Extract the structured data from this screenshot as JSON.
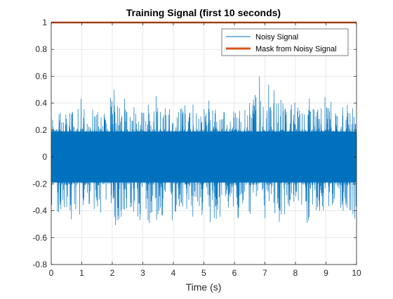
{
  "chart_data": {
    "type": "line",
    "title": "Training Signal (first 10 seconds)",
    "xlabel": "Time (s)",
    "ylabel": "",
    "xlim": [
      0,
      10
    ],
    "ylim": [
      -0.8,
      1
    ],
    "xticks": [
      0,
      1,
      2,
      3,
      4,
      5,
      6,
      7,
      8,
      9,
      10
    ],
    "yticks": [
      -0.8,
      -0.6,
      -0.4,
      -0.2,
      0,
      0.2,
      0.4,
      0.6,
      0.8,
      1
    ],
    "grid": true,
    "legend_position": "top-right",
    "series": [
      {
        "name": "Noisy Signal",
        "color": "#0072BD",
        "style": "dense noise waveform",
        "x": [
          0,
          0.25,
          0.5,
          0.75,
          1,
          1.25,
          1.5,
          1.75,
          2,
          2.25,
          2.5,
          2.75,
          3,
          3.25,
          3.5,
          3.75,
          4,
          4.25,
          4.5,
          4.75,
          5,
          5.25,
          5.5,
          5.75,
          6,
          6.25,
          6.5,
          6.75,
          7,
          7.25,
          7.5,
          7.75,
          8,
          8.25,
          8.5,
          8.75,
          9,
          9.25,
          9.5,
          9.75,
          10
        ],
        "upper": [
          0.38,
          0.45,
          0.42,
          0.45,
          0.45,
          0.4,
          0.44,
          0.46,
          0.52,
          0.48,
          0.44,
          0.41,
          0.48,
          0.5,
          0.47,
          0.5,
          0.44,
          0.5,
          0.48,
          0.42,
          0.46,
          0.49,
          0.45,
          0.45,
          0.44,
          0.45,
          0.43,
          0.65,
          0.55,
          0.55,
          0.47,
          0.45,
          0.46,
          0.46,
          0.45,
          0.45,
          0.5,
          0.42,
          0.44,
          0.5,
          0.5
        ],
        "lower": [
          -0.48,
          -0.45,
          -0.52,
          -0.5,
          -0.45,
          -0.48,
          -0.5,
          -0.5,
          -0.48,
          -0.68,
          -0.5,
          -0.44,
          -0.5,
          -0.55,
          -0.49,
          -0.6,
          -0.56,
          -0.5,
          -0.48,
          -0.44,
          -0.49,
          -0.5,
          -0.5,
          -0.42,
          -0.48,
          -0.48,
          -0.54,
          -0.56,
          -0.48,
          -0.46,
          -0.52,
          -0.55,
          -0.48,
          -0.52,
          -0.48,
          -0.52,
          -0.5,
          -0.46,
          -0.48,
          -0.5,
          -0.62
        ],
        "core": 0.19
      },
      {
        "name": "Mask from Noisy Signal",
        "color": "#D95319",
        "x": [
          0,
          10
        ],
        "values": [
          1,
          1
        ]
      }
    ]
  }
}
